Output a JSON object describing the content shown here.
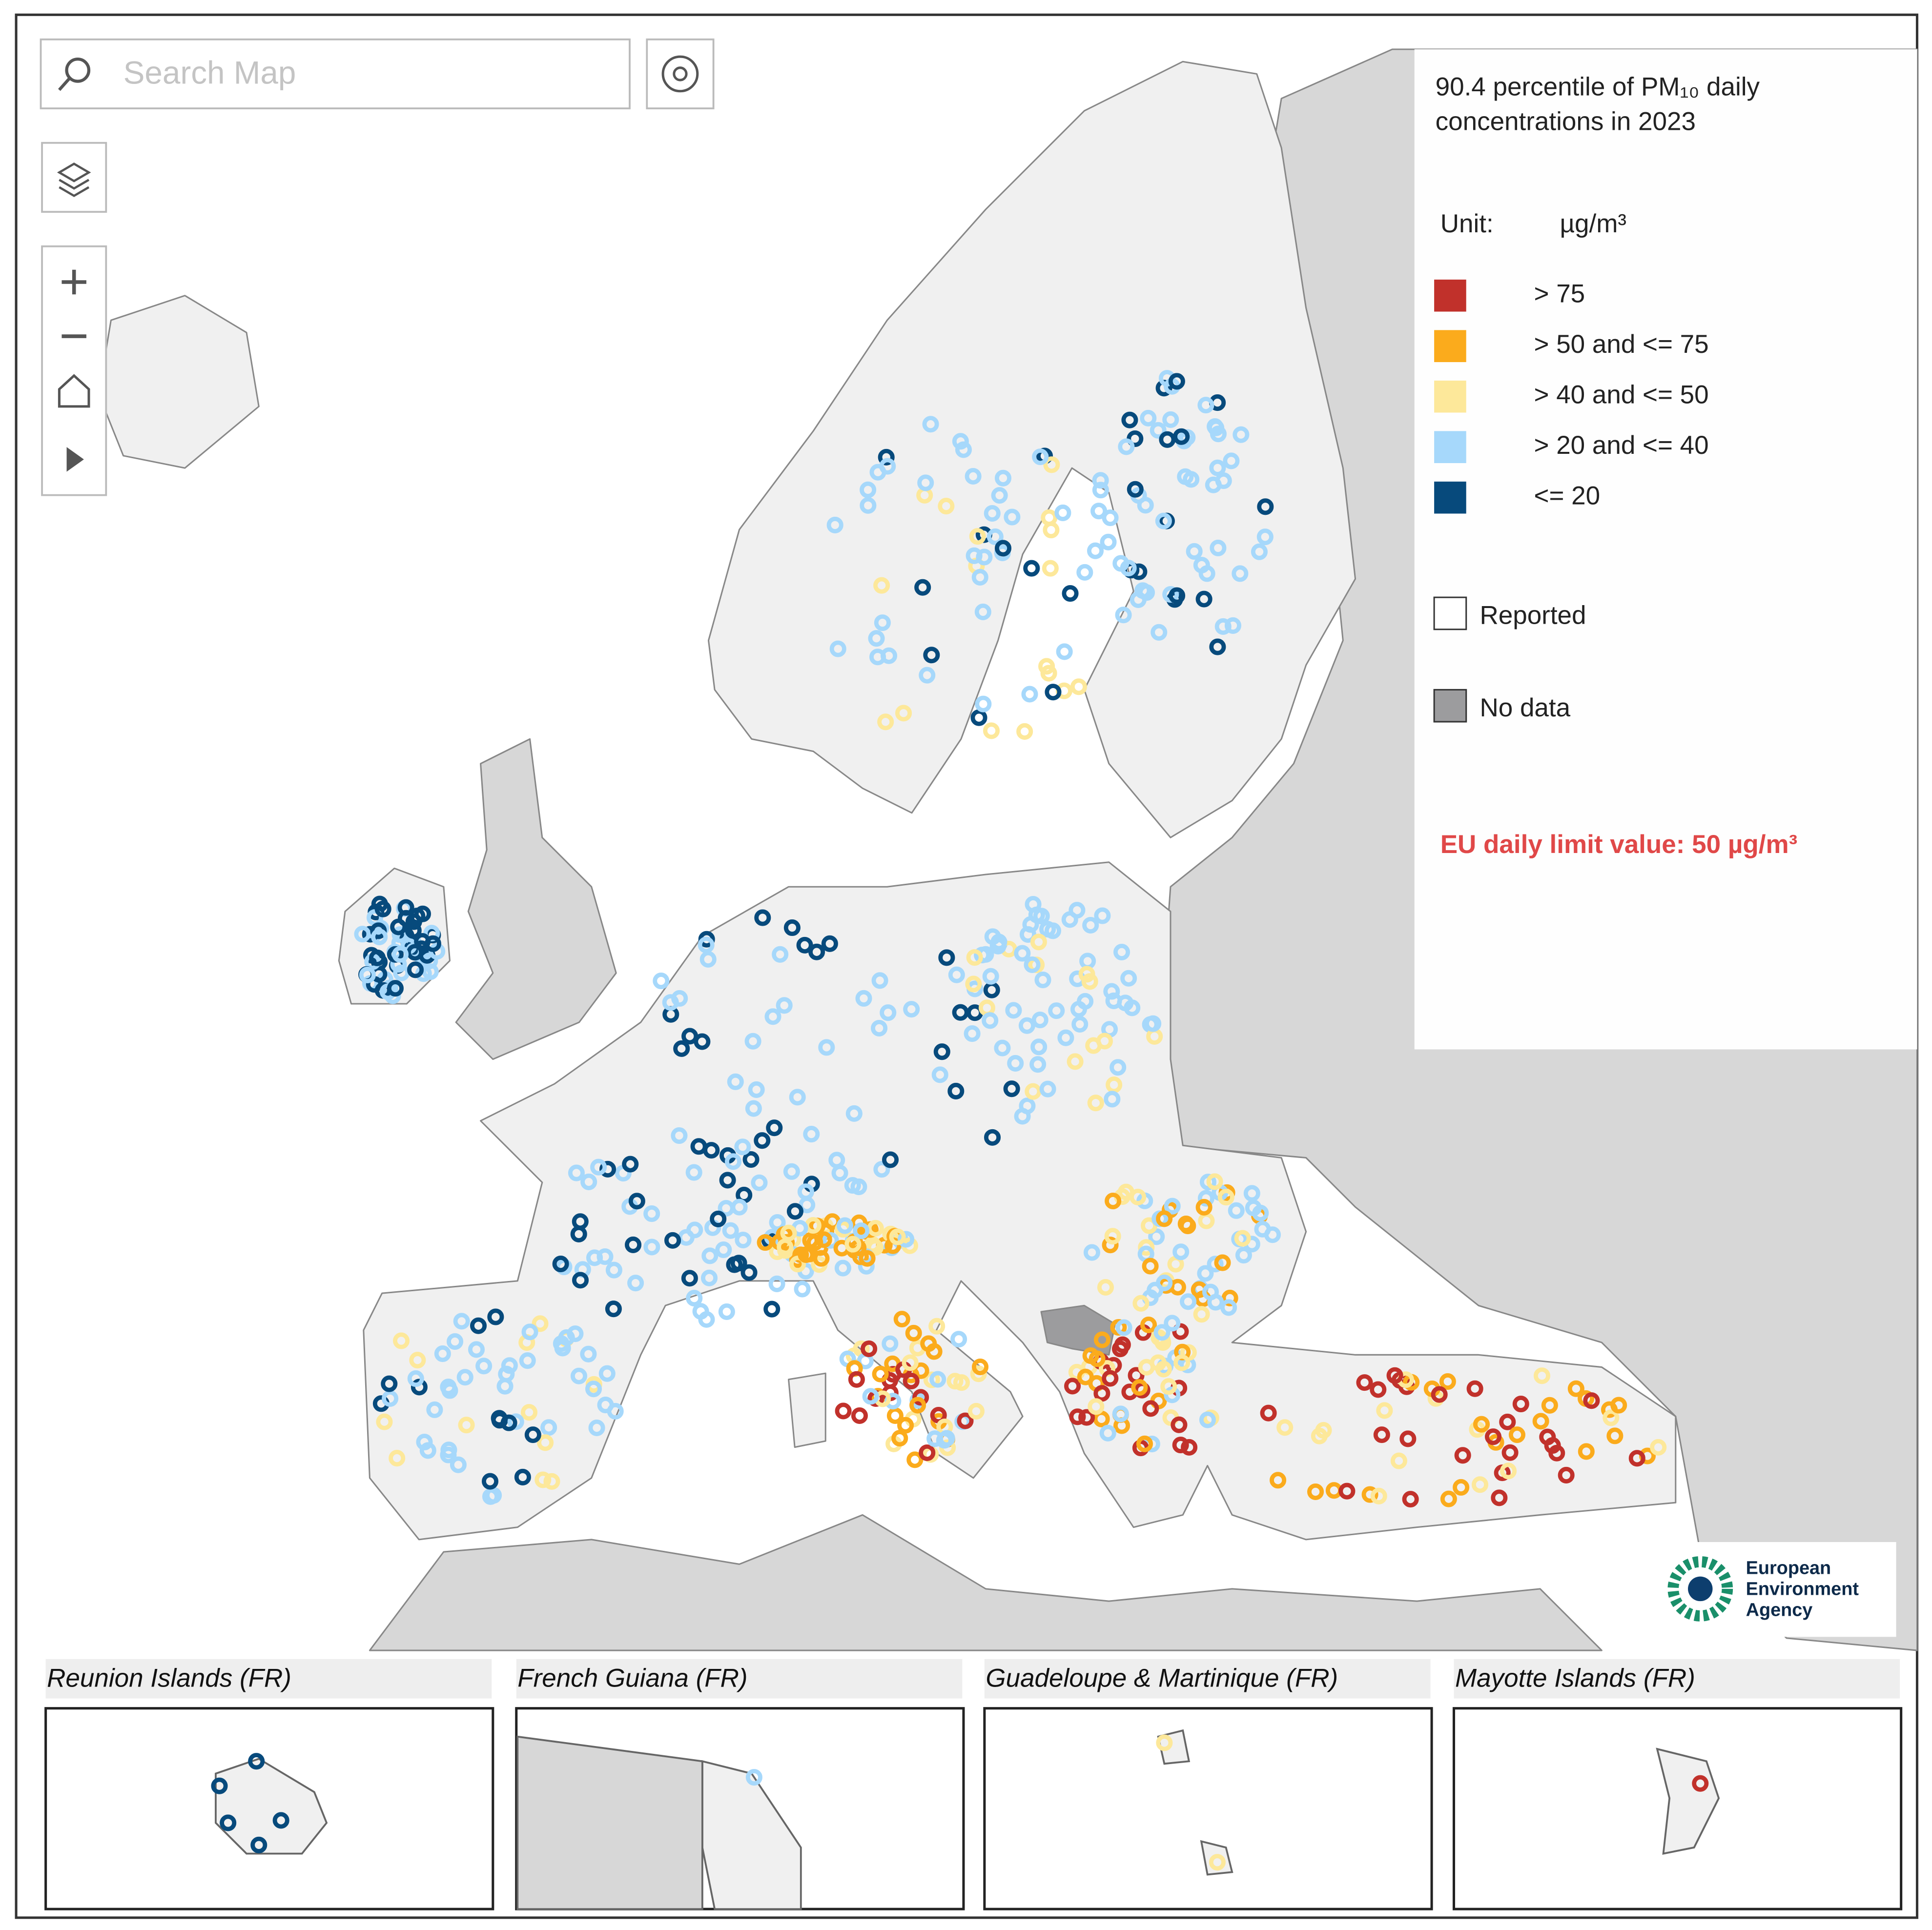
{
  "search": {
    "placeholder": "Search Map"
  },
  "legend": {
    "title": [
      "90.4 percentile of PM₁₀ daily",
      "concentrations in 2023"
    ],
    "unit_label": "Unit:",
    "unit": "µg/m³",
    "classes": [
      {
        "label": "> 75",
        "color": "#c1312b"
      },
      {
        "label": "> 50 and <= 75",
        "color": "#fbab1c"
      },
      {
        "label": "> 40 and <= 50",
        "color": "#fde89a"
      },
      {
        "label": "> 20 and <= 40",
        "color": "#a6d8fb"
      },
      {
        "label": "<= 20",
        "color": "#074a7c"
      }
    ],
    "reported": "Reported",
    "no_data": "No data",
    "note": "EU daily limit value: 50 µg/m³"
  },
  "logo": [
    "European",
    "Environment",
    "Agency"
  ],
  "insets": [
    "Reunion Islands (FR)",
    "French Guiana (FR)",
    "Guadeloupe & Martinique (FR)",
    "Mayotte Islands (FR)"
  ]
}
